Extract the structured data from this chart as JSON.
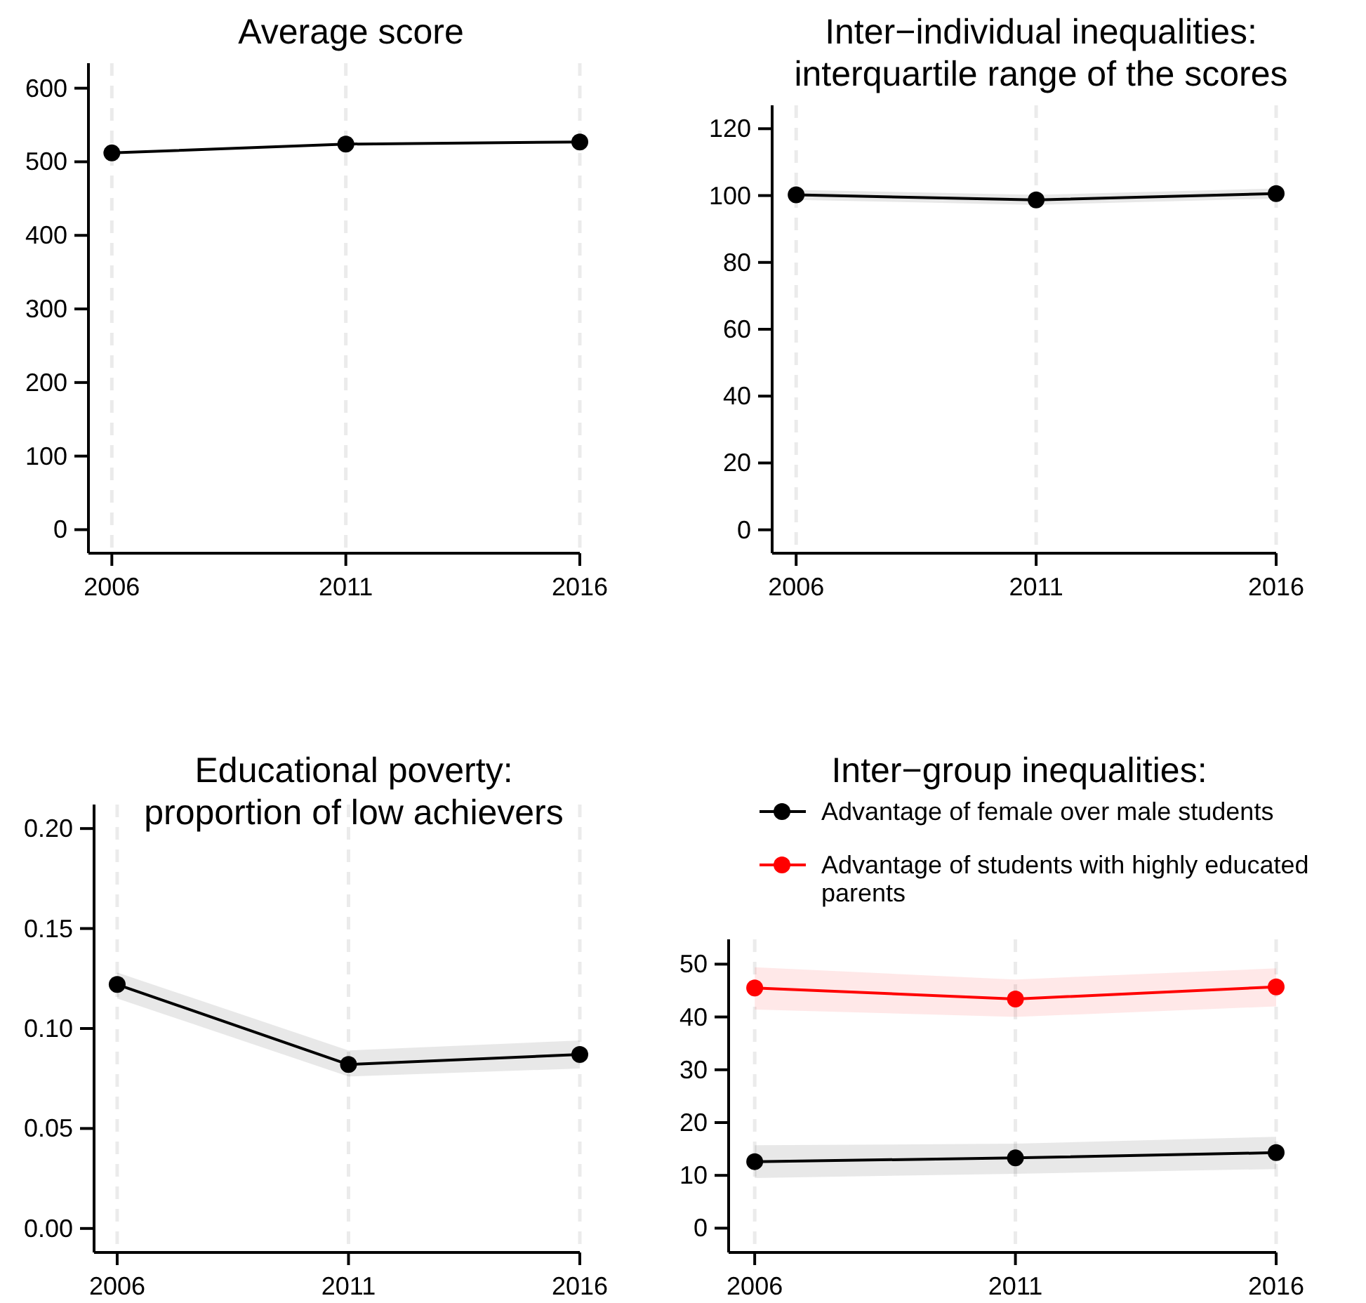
{
  "chart_data": [
    {
      "type": "line",
      "title": "Average score",
      "x": [
        2006,
        2011,
        2016
      ],
      "xlim": [
        2005.5,
        2016
      ],
      "xticks": [
        2006,
        2011,
        2016
      ],
      "ylim": [
        -32,
        634
      ],
      "yticks": [
        0,
        100,
        200,
        300,
        400,
        500,
        600
      ],
      "grid": "x",
      "marker": "circle",
      "legend": false,
      "series": [
        {
          "color": "#000000",
          "values": [
            512,
            524,
            527
          ]
        }
      ]
    },
    {
      "type": "line",
      "title": "Inter−individual inequalities:\ninterquartile range of the scores",
      "x": [
        2006,
        2011,
        2016
      ],
      "xlim": [
        2005.5,
        2016
      ],
      "xticks": [
        2006,
        2011,
        2016
      ],
      "ylim": [
        -7,
        127
      ],
      "yticks": [
        0,
        20,
        40,
        60,
        80,
        100,
        120
      ],
      "grid": "x",
      "marker": "circle",
      "legend": false,
      "series": [
        {
          "color": "#000000",
          "values": [
            100.2,
            98.7,
            100.6
          ],
          "lower": [
            98.7,
            97.2,
            99.1
          ],
          "upper": [
            101.7,
            100.2,
            102.1
          ]
        }
      ]
    },
    {
      "type": "line",
      "title": "Educational poverty:\nproportion of low achievers",
      "x": [
        2006,
        2011,
        2016
      ],
      "xlim": [
        2005.5,
        2016
      ],
      "xticks": [
        2006,
        2011,
        2016
      ],
      "ylim": [
        -0.012,
        0.212
      ],
      "yticks": [
        {
          "value": 0,
          "label": "0.00"
        },
        {
          "value": 0.05,
          "label": "0.05"
        },
        {
          "value": 0.1,
          "label": "0.10"
        },
        {
          "value": 0.15,
          "label": "0.15"
        },
        {
          "value": 0.2,
          "label": "0.20"
        }
      ],
      "grid": "x",
      "marker": "circle",
      "legend": false,
      "series": [
        {
          "color": "#000000",
          "values": [
            0.122,
            0.082,
            0.087
          ],
          "lower": [
            0.115,
            0.076,
            0.08
          ],
          "upper": [
            0.128,
            0.089,
            0.094
          ]
        }
      ]
    },
    {
      "type": "line",
      "title": "Inter−group inequalities:",
      "x": [
        2006,
        2011,
        2016
      ],
      "xlim": [
        2005.5,
        2016
      ],
      "xticks": [
        2006,
        2011,
        2016
      ],
      "ylim": [
        -4.6,
        54.7
      ],
      "yticks": [
        0,
        10,
        20,
        30,
        40,
        50
      ],
      "grid": "x",
      "marker": "circle",
      "legend": "top",
      "series": [
        {
          "name": "Advantage of female over male students",
          "color": "#000000",
          "values": [
            12.6,
            13.3,
            14.3
          ],
          "lower": [
            9.5,
            10.3,
            11.2
          ],
          "upper": [
            15.7,
            16.0,
            17.3
          ]
        },
        {
          "name": "Advantage of students with highly educated parents",
          "color": "#ff0000",
          "values": [
            45.5,
            43.4,
            45.7
          ],
          "lower": [
            41.4,
            40.0,
            42.0
          ],
          "upper": [
            49.4,
            47.1,
            49.2
          ]
        }
      ]
    }
  ]
}
